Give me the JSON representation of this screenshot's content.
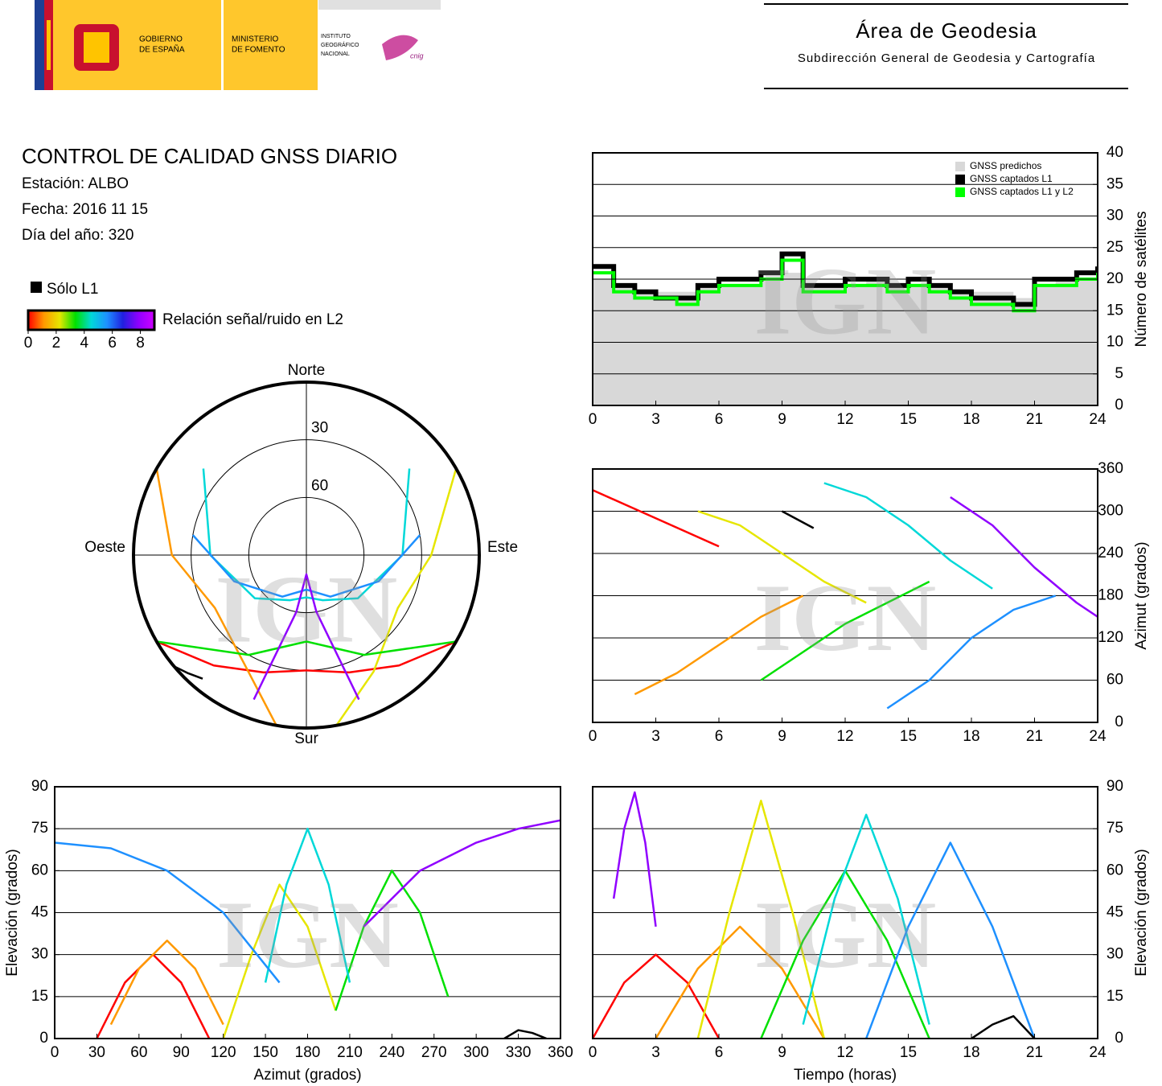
{
  "header": {
    "gobierno": [
      "GOBIERNO",
      "DE ESPAÑA"
    ],
    "ministerio": [
      "MINISTERIO",
      "DE FOMENTO"
    ],
    "instituto": [
      "INSTITUTO",
      "GEOGRÁFICO",
      "NACIONAL"
    ],
    "cnig": "cnig",
    "area": "Área de Geodesia",
    "subdireccion": "Subdirección General de Geodesia y Cartografía"
  },
  "report": {
    "title": "CONTROL DE CALIDAD GNSS DIARIO",
    "station": "Estación: ALBO",
    "date": "Fecha: 2016 11 15",
    "doy": "Día del año: 320",
    "only_l1": "Sólo L1",
    "snr_label": "Relación señal/ruido en L2",
    "snr_lim": [
      0,
      9
    ],
    "snr_ticks": [
      0,
      2,
      4,
      6,
      8
    ],
    "snr_colors": [
      "#ff0000",
      "#ff9900",
      "#e6e600",
      "#00e000",
      "#00d8d8",
      "#1e90ff",
      "#2020e0",
      "#9000ff",
      "#d000ff"
    ],
    "watermark": "IGN"
  },
  "chart_data": [
    {
      "type": "step",
      "ylabel": "Número de satélites",
      "yaxis_side": "right",
      "grid": true,
      "x": [
        0,
        1,
        2,
        3,
        4,
        5,
        6,
        7,
        8,
        9,
        10,
        11,
        12,
        13,
        14,
        15,
        16,
        17,
        18,
        19,
        20,
        21,
        22,
        23,
        24
      ],
      "xlim": [
        0,
        24
      ],
      "xticks": [
        0,
        3,
        6,
        9,
        12,
        15,
        18,
        21,
        24
      ],
      "ylim": [
        0,
        40
      ],
      "yticks": [
        0,
        5,
        10,
        15,
        20,
        25,
        30,
        35,
        40
      ],
      "series": [
        {
          "name": "GNSS predichos",
          "color": "#d8d8d8",
          "area": true,
          "values": [
            20,
            19,
            18,
            18,
            18,
            19,
            19,
            19,
            20,
            21,
            19,
            19,
            19,
            20,
            19,
            19,
            19,
            18,
            18,
            18,
            17,
            19,
            20,
            20,
            21
          ]
        },
        {
          "name": "GNSS captados L1",
          "color": "#000000",
          "values": [
            22,
            19,
            18,
            17,
            17,
            19,
            20,
            20,
            21,
            24,
            19,
            19,
            20,
            20,
            19,
            20,
            19,
            18,
            17,
            17,
            16,
            20,
            20,
            21,
            22
          ]
        },
        {
          "name": "GNSS captados L1 y L2",
          "color": "#00ff00",
          "values": [
            21,
            18,
            17,
            17,
            16,
            18,
            19,
            19,
            20,
            23,
            18,
            18,
            19,
            19,
            18,
            19,
            18,
            17,
            16,
            16,
            15,
            19,
            19,
            20,
            21
          ]
        }
      ]
    },
    {
      "type": "line",
      "ylabel": "Azimut (grados)",
      "yaxis_side": "right",
      "grid": true,
      "xlim": [
        0,
        24
      ],
      "xticks": [
        0,
        3,
        6,
        9,
        12,
        15,
        18,
        21,
        24
      ],
      "ylim": [
        0,
        360
      ],
      "yticks": [
        0,
        60,
        120,
        180,
        240,
        300,
        360
      ],
      "series": [
        {
          "color": "#ff0000",
          "x": [
            0,
            1.5,
            3,
            4.5,
            6
          ],
          "values": [
            330,
            310,
            290,
            270,
            250
          ]
        },
        {
          "color": "#ff9900",
          "x": [
            2,
            4,
            6,
            8,
            10
          ],
          "values": [
            40,
            70,
            110,
            150,
            180
          ]
        },
        {
          "color": "#e6e600",
          "x": [
            5,
            7,
            9,
            11,
            13
          ],
          "values": [
            300,
            280,
            240,
            200,
            170
          ]
        },
        {
          "color": "#00e000",
          "x": [
            8,
            10,
            12,
            14,
            16
          ],
          "values": [
            60,
            100,
            140,
            170,
            200
          ]
        },
        {
          "color": "#00d8d8",
          "x": [
            11,
            13,
            15,
            17,
            19
          ],
          "values": [
            340,
            320,
            280,
            230,
            190
          ]
        },
        {
          "color": "#1e90ff",
          "x": [
            14,
            16,
            18,
            20,
            22
          ],
          "values": [
            20,
            60,
            120,
            160,
            180
          ]
        },
        {
          "color": "#9000ff",
          "x": [
            17,
            19,
            21,
            23,
            24
          ],
          "values": [
            320,
            280,
            220,
            170,
            150
          ]
        },
        {
          "color": "#000000",
          "x": [
            9,
            9.5,
            10,
            10.5
          ],
          "values": [
            300,
            292,
            284,
            276
          ]
        }
      ]
    },
    {
      "type": "polar",
      "rlim": [
        90,
        0
      ],
      "rticks": [
        30,
        60
      ],
      "directions": {
        "north": "Norte",
        "east": "Este",
        "south": "Sur",
        "west": "Oeste"
      },
      "series": [
        {
          "color": "#ff0000",
          "x": [
            240,
            220,
            200,
            180,
            160,
            140,
            120
          ],
          "values": [
            0,
            15,
            25,
            30,
            25,
            15,
            0
          ]
        },
        {
          "color": "#ff9900",
          "x": [
            300,
            270,
            240,
            210,
            190
          ],
          "values": [
            0,
            20,
            35,
            25,
            0
          ]
        },
        {
          "color": "#e6e600",
          "x": [
            60,
            90,
            120,
            150,
            170
          ],
          "values": [
            0,
            25,
            35,
            20,
            0
          ]
        },
        {
          "color": "#00e000",
          "x": [
            120,
            150,
            180,
            210,
            240
          ],
          "values": [
            0,
            30,
            45,
            30,
            0
          ]
        },
        {
          "color": "#00d8d8",
          "x": [
            310,
            270,
            230,
            200,
            180,
            160,
            130,
            90,
            50
          ],
          "values": [
            20,
            40,
            55,
            65,
            68,
            65,
            55,
            40,
            20
          ]
        },
        {
          "color": "#1e90ff",
          "x": [
            280,
            250,
            210,
            180,
            150,
            110,
            80
          ],
          "values": [
            30,
            50,
            65,
            72,
            65,
            50,
            30
          ]
        },
        {
          "color": "#9000ff",
          "x": [
            200,
            190,
            180,
            170,
            160
          ],
          "values": [
            10,
            60,
            80,
            60,
            10
          ]
        },
        {
          "color": "#000000",
          "x": [
            230,
            225,
            220
          ],
          "values": [
            0,
            3,
            6
          ]
        }
      ]
    },
    {
      "type": "line",
      "xlabel": "Azimut (grados)",
      "ylabel": "Elevación (grados)",
      "yaxis_side": "left",
      "grid": true,
      "xlim": [
        0,
        360
      ],
      "xticks": [
        0,
        30,
        60,
        90,
        120,
        150,
        180,
        210,
        240,
        270,
        300,
        330,
        360
      ],
      "ylim": [
        0,
        90
      ],
      "yticks": [
        0,
        15,
        30,
        45,
        60,
        75,
        90
      ],
      "series": [
        {
          "color": "#ff0000",
          "x": [
            30,
            50,
            70,
            90,
            110
          ],
          "values": [
            0,
            20,
            30,
            20,
            0
          ]
        },
        {
          "color": "#ff9900",
          "x": [
            40,
            60,
            80,
            100,
            120
          ],
          "values": [
            5,
            25,
            35,
            25,
            5
          ]
        },
        {
          "color": "#e6e600",
          "x": [
            120,
            140,
            160,
            180,
            200
          ],
          "values": [
            0,
            30,
            55,
            40,
            10
          ]
        },
        {
          "color": "#00e000",
          "x": [
            200,
            220,
            240,
            260,
            280
          ],
          "values": [
            10,
            40,
            60,
            45,
            15
          ]
        },
        {
          "color": "#00d8d8",
          "x": [
            150,
            165,
            180,
            195,
            210
          ],
          "values": [
            20,
            55,
            75,
            55,
            20
          ]
        },
        {
          "color": "#1e90ff",
          "x": [
            0,
            40,
            80,
            120,
            160
          ],
          "values": [
            70,
            68,
            60,
            45,
            20
          ]
        },
        {
          "color": "#9000ff",
          "x": [
            220,
            260,
            300,
            330,
            360
          ],
          "values": [
            40,
            60,
            70,
            75,
            78
          ]
        },
        {
          "color": "#000000",
          "x": [
            320,
            330,
            340,
            350
          ],
          "values": [
            0,
            3,
            2,
            0
          ]
        }
      ]
    },
    {
      "type": "line",
      "xlabel": "Tiempo (horas)",
      "ylabel": "Elevación (grados)",
      "yaxis_side": "right",
      "grid": true,
      "xlim": [
        0,
        24
      ],
      "xticks": [
        0,
        3,
        6,
        9,
        12,
        15,
        18,
        21,
        24
      ],
      "ylim": [
        0,
        90
      ],
      "yticks": [
        0,
        15,
        30,
        45,
        60,
        75,
        90
      ],
      "series": [
        {
          "color": "#ff0000",
          "x": [
            0,
            1.5,
            3,
            4.5,
            6
          ],
          "values": [
            0,
            20,
            30,
            20,
            0
          ]
        },
        {
          "color": "#ff9900",
          "x": [
            3,
            5,
            7,
            9,
            11
          ],
          "values": [
            0,
            25,
            40,
            25,
            0
          ]
        },
        {
          "color": "#e6e600",
          "x": [
            5,
            6.5,
            8,
            9.5,
            11
          ],
          "values": [
            0,
            45,
            85,
            45,
            0
          ]
        },
        {
          "color": "#00e000",
          "x": [
            8,
            10,
            12,
            14,
            16
          ],
          "values": [
            0,
            35,
            60,
            35,
            0
          ]
        },
        {
          "color": "#00d8d8",
          "x": [
            10,
            11.5,
            13,
            14.5,
            16
          ],
          "values": [
            5,
            50,
            80,
            50,
            5
          ]
        },
        {
          "color": "#1e90ff",
          "x": [
            13,
            15,
            17,
            19,
            21
          ],
          "values": [
            0,
            40,
            70,
            40,
            0
          ]
        },
        {
          "color": "#9000ff",
          "x": [
            1,
            1.5,
            2,
            2.5,
            3
          ],
          "values": [
            50,
            75,
            88,
            70,
            40
          ]
        },
        {
          "color": "#000000",
          "x": [
            18,
            19,
            20,
            21
          ],
          "values": [
            0,
            5,
            8,
            0
          ]
        }
      ]
    }
  ]
}
